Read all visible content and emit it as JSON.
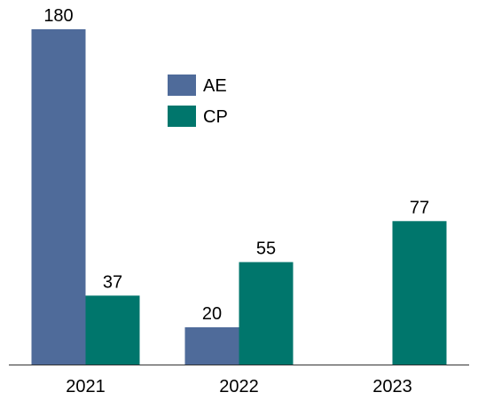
{
  "chart_data": {
    "type": "bar",
    "categories": [
      "2021",
      "2022",
      "2023"
    ],
    "series": [
      {
        "name": "AE",
        "color": "#4F6B9A",
        "values": [
          180,
          20,
          null
        ]
      },
      {
        "name": "CP",
        "color": "#00766C",
        "values": [
          37,
          55,
          77
        ]
      }
    ],
    "data_labels": [
      [
        "180",
        "20",
        ""
      ],
      [
        "37",
        "55",
        "77"
      ]
    ],
    "ylim": [
      0,
      180
    ],
    "grid": false,
    "legend": "top-center",
    "axis_color": "#333333"
  }
}
